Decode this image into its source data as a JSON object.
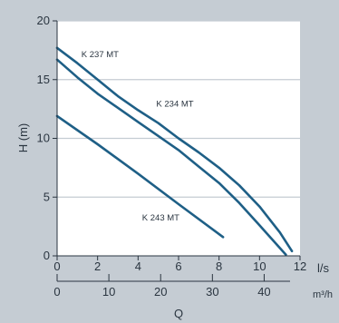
{
  "chart_data": {
    "type": "line",
    "title": "",
    "ylabel": "H (m)",
    "xlabel": "Q",
    "x_unit_primary": "l/s",
    "x_unit_secondary": "m³/h",
    "xlim": [
      0,
      12
    ],
    "ylim": [
      0,
      20
    ],
    "x_ticks": [
      0,
      2,
      4,
      6,
      8,
      10,
      12
    ],
    "y_ticks": [
      0,
      5,
      10,
      15,
      20
    ],
    "x2_ticks": [
      0,
      10,
      20,
      30,
      40
    ],
    "grid": "horizontal",
    "colors": {
      "background": "#c5ccd3",
      "plot_area": "#ffffff",
      "line": "#1e5f86",
      "axis": "#2a3540",
      "grid": "#c5ccd3"
    },
    "series": [
      {
        "name": "K 237 MT",
        "x": [
          0,
          1,
          2,
          3,
          4,
          5,
          6,
          7,
          8,
          9,
          10,
          11,
          11.6
        ],
        "y": [
          17.7,
          16.4,
          15.0,
          13.6,
          12.4,
          11.3,
          10.0,
          8.8,
          7.5,
          6.0,
          4.2,
          2.0,
          0.4
        ]
      },
      {
        "name": "K 234 MT",
        "x": [
          0,
          1,
          2,
          3,
          4,
          5,
          6,
          7,
          8,
          9,
          10,
          11.3
        ],
        "y": [
          16.7,
          15.2,
          13.8,
          12.6,
          11.4,
          10.2,
          9.0,
          7.6,
          6.2,
          4.5,
          2.6,
          0.1
        ]
      },
      {
        "name": "K 243 MT",
        "x": [
          0,
          2,
          4,
          6,
          8.2
        ],
        "y": [
          11.9,
          9.5,
          7.0,
          4.4,
          1.6
        ]
      }
    ],
    "annotations": [
      {
        "text": "K 237 MT",
        "x": 1.2,
        "y": 16.9
      },
      {
        "text": "K 234 MT",
        "x": 4.9,
        "y": 12.7
      },
      {
        "text": "K 243 MT",
        "x": 4.2,
        "y": 3.0
      }
    ]
  }
}
